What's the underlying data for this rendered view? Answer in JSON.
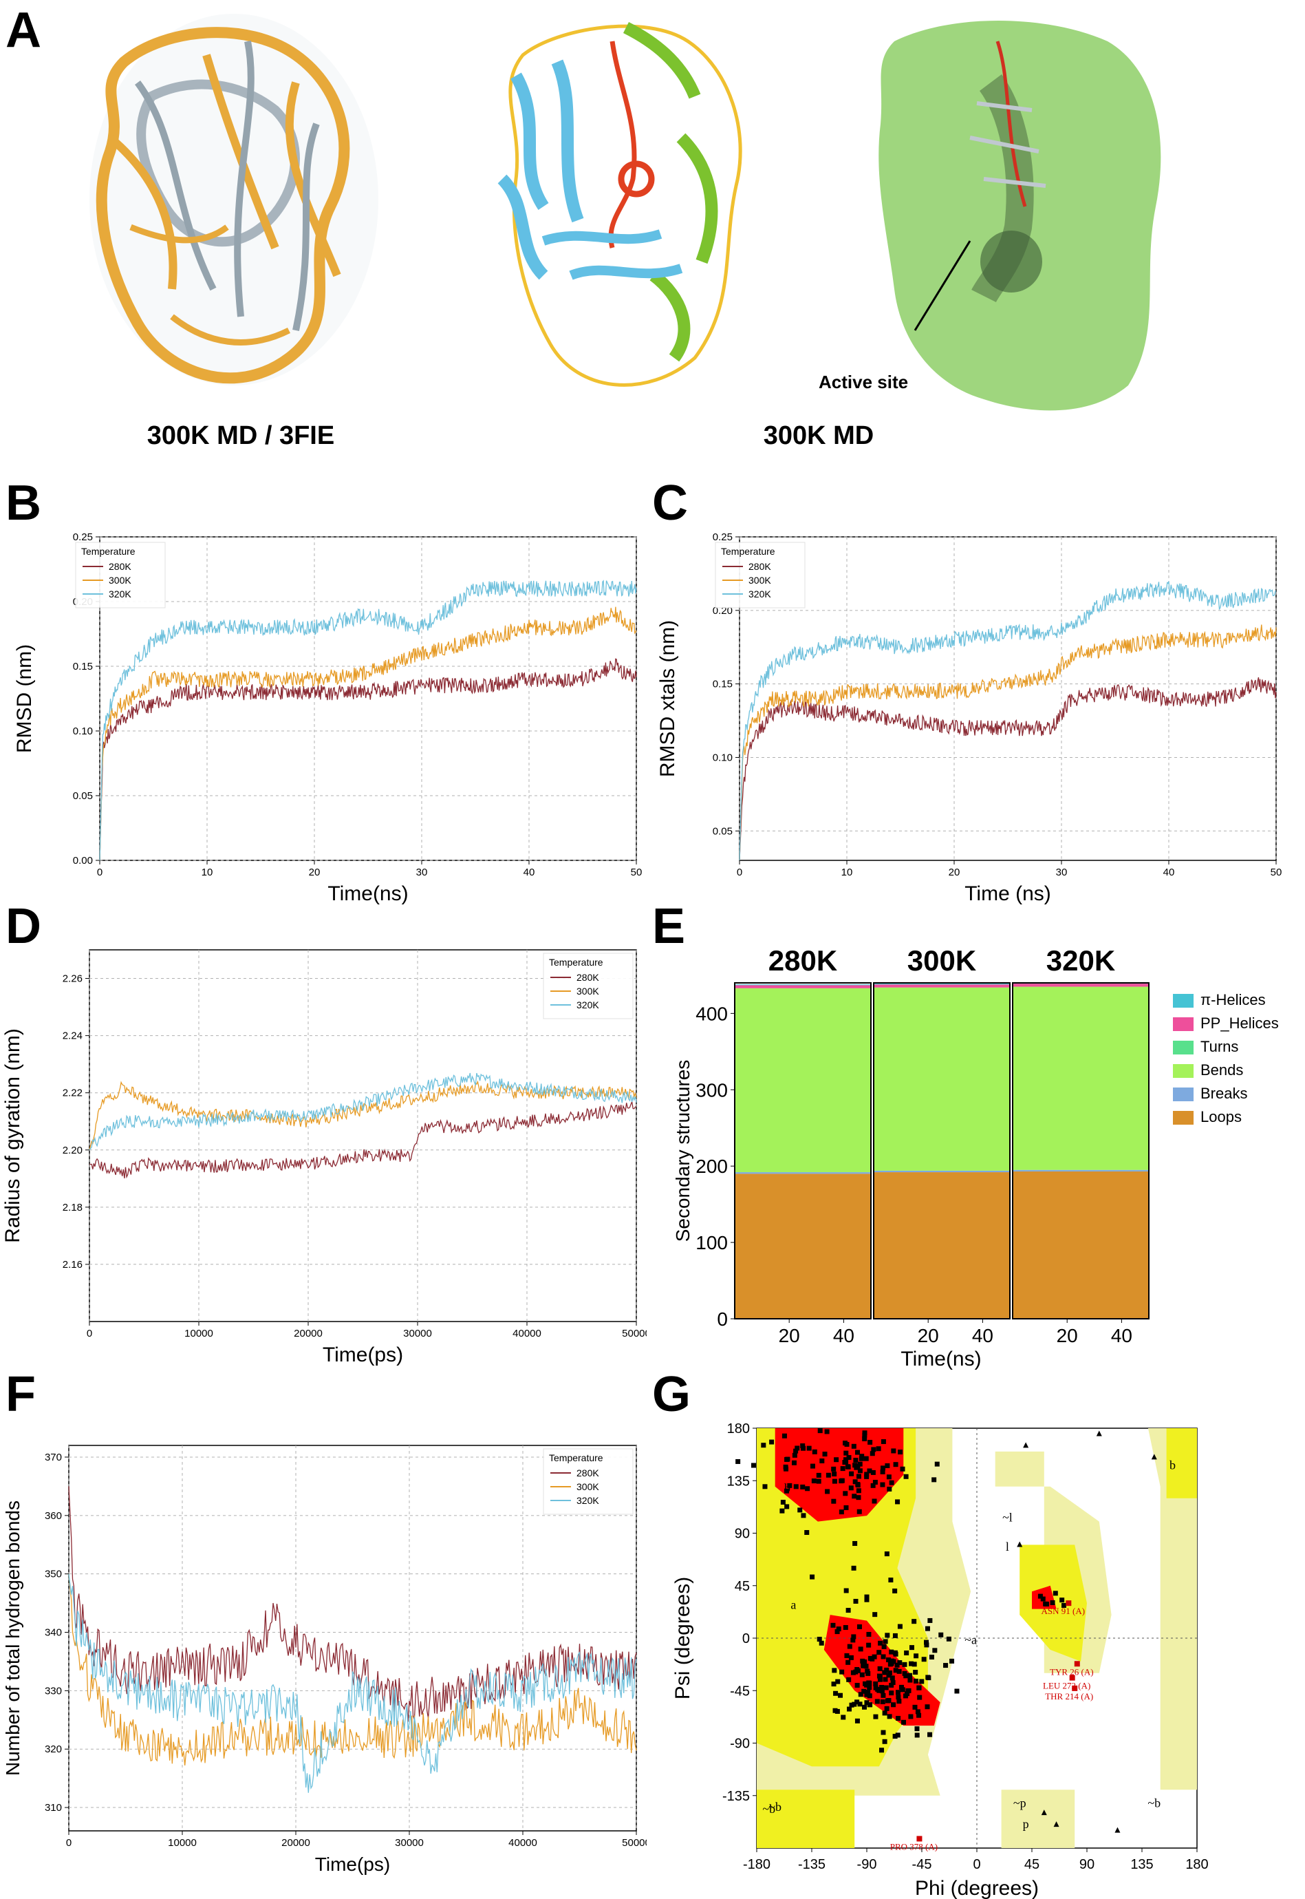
{
  "panels": {
    "A": "A",
    "B": "B",
    "C": "C",
    "D": "D",
    "E": "E",
    "F": "F",
    "G": "G"
  },
  "panel_a": {
    "caption_left": "300K MD / 3FIE",
    "caption_mid": "300K MD",
    "active_site_label": "Active site"
  },
  "colors": {
    "c280": "#8b2a33",
    "c300": "#e69a24",
    "c320": "#6ec0dc",
    "ss_pi": "#45c3d4",
    "ss_pp": "#ee4f9b",
    "ss_turns": "#58e08c",
    "ss_bends": "#a4f25a",
    "ss_breaks": "#7eaadf",
    "ss_loops": "#d9902a",
    "rama_core": "#ff0000",
    "rama_allowed": "#f0f020",
    "rama_generous": "#f0f0a8"
  },
  "chart_data": [
    {
      "panel": "B",
      "type": "line",
      "xlabel": "Time(ns)",
      "ylabel": "RMSD (nm)",
      "xlim": [
        0,
        50
      ],
      "ylim": [
        0,
        0.25
      ],
      "xticks": [
        0,
        10,
        20,
        30,
        40,
        50
      ],
      "yticks": [
        "0.00",
        "0.05",
        "0.10",
        "0.15",
        "0.20",
        "0.25"
      ],
      "grid": true,
      "legend_title": "Temperature",
      "legend_position": "top-left",
      "series": [
        {
          "name": "280K",
          "x": [
            0,
            0.3,
            1,
            2,
            3,
            5,
            8,
            10,
            15,
            20,
            25,
            30,
            35,
            40,
            45,
            48,
            50
          ],
          "y": [
            0,
            0.09,
            0.1,
            0.11,
            0.115,
            0.12,
            0.13,
            0.13,
            0.13,
            0.13,
            0.13,
            0.135,
            0.135,
            0.14,
            0.14,
            0.15,
            0.14
          ]
        },
        {
          "name": "300K",
          "x": [
            0,
            0.3,
            1,
            2,
            3,
            5,
            8,
            10,
            15,
            20,
            25,
            30,
            35,
            40,
            45,
            48,
            50
          ],
          "y": [
            0,
            0.09,
            0.11,
            0.12,
            0.125,
            0.14,
            0.14,
            0.14,
            0.14,
            0.14,
            0.145,
            0.16,
            0.17,
            0.18,
            0.18,
            0.19,
            0.18
          ]
        },
        {
          "name": "320K",
          "x": [
            0,
            0.3,
            1,
            2,
            3,
            5,
            8,
            10,
            15,
            20,
            25,
            30,
            35,
            40,
            45,
            48,
            50
          ],
          "y": [
            0,
            0.1,
            0.12,
            0.14,
            0.15,
            0.17,
            0.18,
            0.18,
            0.18,
            0.18,
            0.19,
            0.18,
            0.21,
            0.21,
            0.21,
            0.21,
            0.21
          ]
        }
      ]
    },
    {
      "panel": "C",
      "type": "line",
      "xlabel": "Time  (ns)",
      "ylabel": "RMSD xtals (nm)",
      "xlim": [
        0,
        50
      ],
      "ylim": [
        0.03,
        0.25
      ],
      "xticks": [
        0,
        10,
        20,
        30,
        40,
        50
      ],
      "yticks": [
        "0.05",
        "0.10",
        "0.15",
        "0.20",
        "0.25"
      ],
      "grid": true,
      "legend_title": "Temperature",
      "legend_position": "top-left",
      "series": [
        {
          "name": "280K",
          "x": [
            0,
            0.3,
            1,
            2,
            3,
            5,
            8,
            10,
            15,
            20,
            25,
            29,
            31,
            35,
            40,
            45,
            48,
            50
          ],
          "y": [
            0.03,
            0.08,
            0.11,
            0.12,
            0.13,
            0.135,
            0.13,
            0.13,
            0.125,
            0.12,
            0.12,
            0.12,
            0.14,
            0.145,
            0.14,
            0.14,
            0.15,
            0.145
          ]
        },
        {
          "name": "300K",
          "x": [
            0,
            0.3,
            1,
            2,
            3,
            5,
            8,
            10,
            15,
            20,
            25,
            29,
            31,
            35,
            40,
            45,
            48,
            50
          ],
          "y": [
            0.03,
            0.1,
            0.12,
            0.13,
            0.14,
            0.14,
            0.14,
            0.145,
            0.145,
            0.145,
            0.15,
            0.155,
            0.17,
            0.175,
            0.18,
            0.18,
            0.185,
            0.185
          ]
        },
        {
          "name": "320K",
          "x": [
            0,
            0.3,
            1,
            2,
            3,
            5,
            8,
            10,
            15,
            20,
            25,
            29,
            31,
            35,
            40,
            45,
            48,
            50
          ],
          "y": [
            0.03,
            0.11,
            0.13,
            0.15,
            0.16,
            0.17,
            0.175,
            0.18,
            0.175,
            0.18,
            0.185,
            0.185,
            0.19,
            0.21,
            0.215,
            0.205,
            0.21,
            0.21
          ]
        }
      ]
    },
    {
      "panel": "D",
      "type": "line",
      "xlabel": "Time(ps)",
      "ylabel": "Radius of gyration (nm)",
      "xlim": [
        0,
        50000
      ],
      "ylim": [
        2.14,
        2.27
      ],
      "xticks": [
        0,
        10000,
        20000,
        30000,
        40000,
        50000
      ],
      "yticks": [
        "2.16",
        "2.18",
        "2.20",
        "2.22",
        "2.24",
        "2.26"
      ],
      "grid": true,
      "legend_title": "Temperature",
      "legend_position": "top-right",
      "series": [
        {
          "name": "280K",
          "x": [
            0,
            1000,
            3000,
            5000,
            10000,
            15000,
            20000,
            25000,
            29500,
            30500,
            35000,
            40000,
            45000,
            50000
          ],
          "y": [
            2.195,
            2.195,
            2.192,
            2.195,
            2.194,
            2.195,
            2.195,
            2.198,
            2.198,
            2.208,
            2.208,
            2.21,
            2.212,
            2.215
          ]
        },
        {
          "name": "300K",
          "x": [
            0,
            1000,
            3000,
            5000,
            10000,
            15000,
            20000,
            25000,
            30000,
            35000,
            40000,
            45000,
            50000
          ],
          "y": [
            2.2,
            2.215,
            2.222,
            2.218,
            2.212,
            2.212,
            2.21,
            2.214,
            2.218,
            2.222,
            2.22,
            2.22,
            2.22
          ]
        },
        {
          "name": "320K",
          "x": [
            0,
            1000,
            3000,
            5000,
            10000,
            15000,
            20000,
            25000,
            30000,
            35000,
            40000,
            45000,
            50000
          ],
          "y": [
            2.2,
            2.205,
            2.21,
            2.21,
            2.21,
            2.212,
            2.212,
            2.216,
            2.222,
            2.225,
            2.222,
            2.22,
            2.218
          ]
        }
      ]
    },
    {
      "panel": "E",
      "type": "area",
      "ylabel": "Secondary structures",
      "xlabel": "Time(ns)",
      "facets": [
        "280K",
        "300K",
        "320K"
      ],
      "xticks": [
        20,
        40
      ],
      "xlim": [
        0,
        50
      ],
      "ylim": [
        0,
        440
      ],
      "yticks": [
        0,
        100,
        200,
        300,
        400
      ],
      "legend_position": "right",
      "legend": [
        "π-Helices",
        "PP_Helices",
        "Turns",
        "Bends",
        "Breaks",
        "Loops"
      ],
      "stack": [
        {
          "name": "Loops",
          "values": [
            190,
            192,
            193
          ]
        },
        {
          "name": "Breaks",
          "values": [
            2,
            2,
            2
          ]
        },
        {
          "name": "Bends",
          "values": [
            241,
            240,
            240
          ]
        },
        {
          "name": "Turns",
          "values": [
            0,
            0,
            0
          ]
        },
        {
          "name": "PP_Helices",
          "values": [
            4,
            4,
            4
          ]
        },
        {
          "name": "π-Helices",
          "values": [
            1,
            1,
            1
          ]
        }
      ]
    },
    {
      "panel": "F",
      "type": "line",
      "xlabel": "Time(ps)",
      "ylabel": "Number of total hydrogen bonds",
      "xlim": [
        0,
        50000
      ],
      "ylim": [
        306,
        372
      ],
      "xticks": [
        0,
        10000,
        20000,
        30000,
        40000,
        50000
      ],
      "yticks": [
        310,
        320,
        330,
        340,
        350,
        360,
        370
      ],
      "grid": true,
      "legend_title": "Temperature",
      "legend_position": "top-right",
      "series": [
        {
          "name": "280K",
          "x": [
            0,
            500,
            2000,
            5000,
            10000,
            15000,
            18000,
            20000,
            25000,
            30000,
            35000,
            40000,
            45000,
            50000
          ],
          "y": [
            365,
            345,
            338,
            333,
            334,
            335,
            342,
            338,
            334,
            328,
            330,
            333,
            335,
            333
          ]
        },
        {
          "name": "300K",
          "x": [
            0,
            500,
            2000,
            5000,
            10000,
            15000,
            20000,
            25000,
            30000,
            35000,
            40000,
            45000,
            50000
          ],
          "y": [
            350,
            340,
            330,
            322,
            320,
            322,
            322,
            322,
            322,
            325,
            323,
            327,
            322
          ]
        },
        {
          "name": "320K",
          "x": [
            0,
            500,
            2000,
            5000,
            10000,
            15000,
            20000,
            21000,
            25000,
            30000,
            32000,
            35000,
            40000,
            45000,
            50000
          ],
          "y": [
            350,
            342,
            335,
            330,
            328,
            327,
            328,
            315,
            330,
            326,
            316,
            330,
            330,
            333,
            332
          ]
        }
      ]
    },
    {
      "panel": "G",
      "type": "scatter",
      "xlabel": "Phi (degrees)",
      "ylabel": "Psi (degrees)",
      "xlim": [
        -180,
        180
      ],
      "ylim": [
        -180,
        180
      ],
      "xticks": [
        -180,
        -135,
        -90,
        -45,
        0,
        45,
        90,
        135,
        180
      ],
      "yticks": [
        180,
        135,
        90,
        45,
        0,
        -45,
        -90,
        -135
      ],
      "region_labels": [
        "b",
        "a",
        "~b",
        "~l",
        "l",
        "~a",
        "~b",
        "~b",
        "~p",
        "p",
        "b"
      ],
      "annotations": [
        {
          "label": "ASN 91 (A)",
          "x": 75,
          "y": 30
        },
        {
          "label": "TYR 26 (A)",
          "x": 82,
          "y": -22
        },
        {
          "label": "LEU 272 (A)",
          "x": 78,
          "y": -34
        },
        {
          "label": "THR 214 (A)",
          "x": 80,
          "y": -43
        },
        {
          "label": "PRO 378 (A)",
          "x": -47,
          "y": -172
        }
      ]
    }
  ]
}
